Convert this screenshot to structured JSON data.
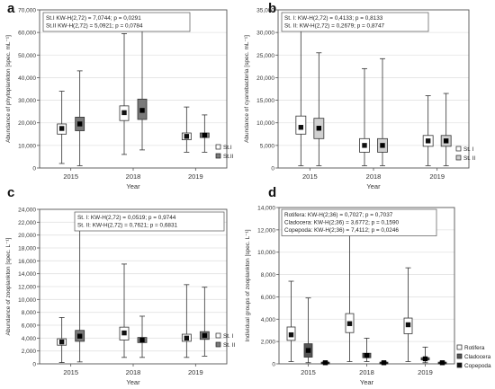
{
  "colors": {
    "axis": "#555555",
    "grid": "#e2e2e2",
    "box_white": "#ffffff",
    "box_gray": "#7a7a7a",
    "box_light": "#d0d0d0",
    "box_dark": "#555555",
    "whisker": "#333333"
  },
  "chart_data": [
    {
      "id": "a",
      "letter": "a",
      "type": "box",
      "ylabel": "Abundance of phytoplankton [spec. mL⁻¹]",
      "xlabel": "Year",
      "categories": [
        "2015",
        "2018",
        "2019"
      ],
      "ylim": [
        0,
        70000
      ],
      "yticks": [
        0,
        10000,
        20000,
        30000,
        40000,
        50000,
        60000,
        70000
      ],
      "ytick_labels": [
        "0",
        "10,000",
        "20,000",
        "30,000",
        "40,000",
        "50,000",
        "60,000",
        "70,000"
      ],
      "stats": [
        "St.I  KW-H(2,72) = 7,0744; p = 0,0291",
        "St.II  KW-H(2,72) = 5,0921; p = 0,0784"
      ],
      "legend": "bottom-right",
      "series": [
        {
          "name": "St.I",
          "style": "white",
          "boxes": [
            {
              "min": 2000,
              "q1": 15000,
              "median": 17500,
              "q3": 19500,
              "max": 34000
            },
            {
              "min": 6000,
              "q1": 21000,
              "median": 24500,
              "q3": 27500,
              "max": 59500
            },
            {
              "min": 7000,
              "q1": 12500,
              "median": 14000,
              "q3": 15500,
              "max": 27000
            }
          ]
        },
        {
          "name": "St.II",
          "style": "gray",
          "boxes": [
            {
              "min": 1000,
              "q1": 16500,
              "median": 19500,
              "q3": 22500,
              "max": 43000
            },
            {
              "min": 8000,
              "q1": 21500,
              "median": 25500,
              "q3": 30500,
              "max": 67000
            },
            {
              "min": 7000,
              "q1": 13500,
              "median": 14500,
              "q3": 15500,
              "max": 23500
            }
          ]
        }
      ]
    },
    {
      "id": "b",
      "letter": "b",
      "type": "box",
      "ylabel": "Abundance of cyanobacteria [spec. mL⁻¹]",
      "xlabel": "Year",
      "categories": [
        "2015",
        "2018",
        "2019"
      ],
      "ylim": [
        0,
        35000
      ],
      "yticks": [
        0,
        5000,
        10000,
        15000,
        20000,
        25000,
        30000,
        35000
      ],
      "ytick_labels": [
        "0",
        "5,000",
        "10,000",
        "15,000",
        "20,000",
        "25,000",
        "30,000",
        "35,000"
      ],
      "stats": [
        "St. I:  KW-H(2,72) = 0,4133; p = 0,8133",
        "St. II:  KW-H(2,72) = 0,2679; p = 0,8747"
      ],
      "legend": "bottom-right",
      "series": [
        {
          "name": "St. I",
          "style": "white",
          "boxes": [
            {
              "min": 500,
              "q1": 7500,
              "median": 9000,
              "q3": 11500,
              "max": 32500
            },
            {
              "min": 500,
              "q1": 3500,
              "median": 5000,
              "q3": 6500,
              "max": 22000
            },
            {
              "min": 500,
              "q1": 4800,
              "median": 6000,
              "q3": 7200,
              "max": 16000
            }
          ]
        },
        {
          "name": "St. II",
          "style": "light",
          "boxes": [
            {
              "min": 500,
              "q1": 6500,
              "median": 8800,
              "q3": 11000,
              "max": 25500
            },
            {
              "min": 500,
              "q1": 3500,
              "median": 5000,
              "q3": 6500,
              "max": 24200
            },
            {
              "min": 500,
              "q1": 4800,
              "median": 6000,
              "q3": 7200,
              "max": 16500
            }
          ]
        }
      ]
    },
    {
      "id": "c",
      "letter": "c",
      "type": "box",
      "ylabel": "Abundance of zooplankton [spec. L⁻¹]",
      "xlabel": "Year",
      "categories": [
        "2015",
        "2018",
        "2019"
      ],
      "ylim": [
        0,
        24000
      ],
      "yticks": [
        0,
        2000,
        4000,
        6000,
        8000,
        10000,
        12000,
        14000,
        16000,
        18000,
        20000,
        22000,
        24000
      ],
      "ytick_labels": [
        "0",
        "2,000",
        "4,000",
        "6,000",
        "8,000",
        "10,000",
        "12,000",
        "14,000",
        "16,000",
        "18,000",
        "20,000",
        "22,000",
        "24,000"
      ],
      "stats": [
        "St. I:  KW-H(2,72) = 0,0519; p = 0,9744",
        "St. II:  KW-H(2,72) = 0,7621; p = 0,6831"
      ],
      "legend": "bottom-right",
      "series": [
        {
          "name": "St. I",
          "style": "white",
          "boxes": [
            {
              "min": 200,
              "q1": 2900,
              "median": 3400,
              "q3": 3900,
              "max": 7200
            },
            {
              "min": 1000,
              "q1": 3700,
              "median": 4800,
              "q3": 5700,
              "max": 15500
            },
            {
              "min": 1000,
              "q1": 3500,
              "median": 4000,
              "q3": 4600,
              "max": 12300
            }
          ]
        },
        {
          "name": "St. II",
          "style": "gray",
          "boxes": [
            {
              "min": 300,
              "q1": 3500,
              "median": 4300,
              "q3": 5200,
              "max": 22500
            },
            {
              "min": 1000,
              "q1": 3300,
              "median": 3700,
              "q3": 4100,
              "max": 7400
            },
            {
              "min": 1200,
              "q1": 3800,
              "median": 4400,
              "q3": 5000,
              "max": 11900
            }
          ]
        }
      ]
    },
    {
      "id": "d",
      "letter": "d",
      "type": "box",
      "ylabel": "Individual groups of zooplankton [spec. L⁻¹]",
      "xlabel": "Year",
      "categories": [
        "2015",
        "2018",
        "2019"
      ],
      "ylim": [
        0,
        14000
      ],
      "yticks": [
        0,
        2000,
        4000,
        6000,
        8000,
        10000,
        12000,
        14000
      ],
      "ytick_labels": [
        "0",
        "2,000",
        "4,000",
        "6,000",
        "8,000",
        "10,000",
        "12,000",
        "14,000"
      ],
      "stats": [
        "Rotifera:  KW-H(2;36) = 0,7027; p = 0,7037",
        "Cladocera:  KW-H(2;36) = 3,6772; p = 0,1590",
        "Copepoda:  KW-H(2;36) = 7,4112; p = 0,0246"
      ],
      "legend": "bottom-right",
      "series": [
        {
          "name": "Rotifera",
          "style": "white",
          "boxes": [
            {
              "min": 200,
              "q1": 2100,
              "median": 2600,
              "q3": 3300,
              "max": 7400
            },
            {
              "min": 200,
              "q1": 2800,
              "median": 3600,
              "q3": 4500,
              "max": 11700
            },
            {
              "min": 200,
              "q1": 2700,
              "median": 3500,
              "q3": 4100,
              "max": 8600
            }
          ]
        },
        {
          "name": "Cladocera",
          "style": "dark",
          "boxes": [
            {
              "min": 100,
              "q1": 600,
              "median": 1200,
              "q3": 1800,
              "max": 5900
            },
            {
              "min": 200,
              "q1": 550,
              "median": 750,
              "q3": 950,
              "max": 2300
            },
            {
              "min": 100,
              "q1": 350,
              "median": 450,
              "q3": 550,
              "max": 1500
            }
          ]
        },
        {
          "name": "Copepoda",
          "style": "black",
          "boxes": [
            {
              "min": 0,
              "q1": 50,
              "median": 100,
              "q3": 150,
              "max": 200
            },
            {
              "min": 0,
              "q1": 50,
              "median": 100,
              "q3": 150,
              "max": 200
            },
            {
              "min": 0,
              "q1": 50,
              "median": 100,
              "q3": 150,
              "max": 200
            }
          ]
        }
      ]
    }
  ]
}
